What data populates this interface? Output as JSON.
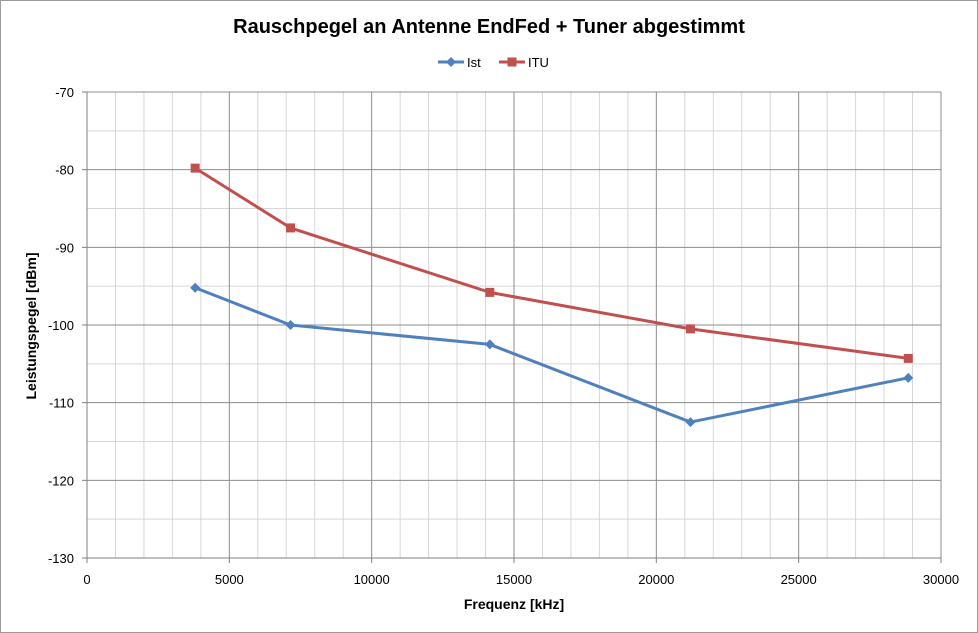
{
  "chart_data": {
    "type": "line",
    "title": "Rauschpegel an Antenne EndFed + Tuner abgestimmt",
    "xlabel": "Frequenz [kHz]",
    "ylabel": "Leistungspegel [dBm]",
    "xlim": [
      0,
      30000
    ],
    "ylim": [
      -130,
      -70
    ],
    "x_ticks": [
      0,
      5000,
      10000,
      15000,
      20000,
      25000,
      30000
    ],
    "y_ticks": [
      -70,
      -80,
      -90,
      -100,
      -110,
      -120,
      -130
    ],
    "x_tick_labels": [
      "0",
      "5000",
      "10000",
      "15000",
      "20000",
      "25000",
      "30000"
    ],
    "y_tick_labels": [
      "-70",
      "-80",
      "-90",
      "-100",
      "-110",
      "-120",
      "-130"
    ],
    "grid": true,
    "legend_position": "top-center",
    "series": [
      {
        "name": "Ist",
        "color": "#4f81bd",
        "marker": "diamond",
        "x": [
          3800,
          7150,
          14150,
          21200,
          28850
        ],
        "y": [
          -95.2,
          -100,
          -102.5,
          -112.5,
          -106.8
        ]
      },
      {
        "name": "ITU",
        "color": "#c0504d",
        "marker": "square",
        "x": [
          3800,
          7150,
          14150,
          21200,
          28850
        ],
        "y": [
          -79.8,
          -87.5,
          -95.8,
          -100.5,
          -104.3
        ]
      }
    ]
  }
}
